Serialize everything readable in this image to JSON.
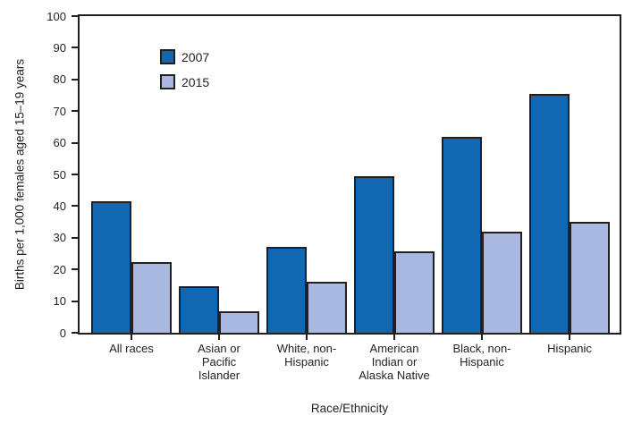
{
  "chart_data": {
    "type": "bar",
    "title": "",
    "categories": [
      "All races",
      "Asian or\nPacific\nIslander",
      "White, non-\nHispanic",
      "American\nIndian or\nAlaska Native",
      "Black, non-\nHispanic",
      "Hispanic"
    ],
    "series": [
      {
        "name": "2007",
        "color": "#1067b2",
        "values": [
          41.5,
          14.8,
          27.2,
          49.3,
          62.0,
          75.3
        ]
      },
      {
        "name": "2015",
        "color": "#a9b8df",
        "values": [
          22.3,
          6.9,
          16.0,
          25.7,
          31.8,
          34.9
        ]
      }
    ],
    "xlabel": "Race/Ethnicity",
    "ylabel": "Births per 1,000 females aged 15–19 years",
    "ylim": [
      0,
      100
    ],
    "yticks": [
      0,
      10,
      20,
      30,
      40,
      50,
      60,
      70,
      80,
      90,
      100
    ],
    "grid": false,
    "legend_position": "top-left-inside",
    "bar_border_color": "#231f20",
    "axis_color": "#231f20",
    "text_color": "#231f20",
    "background_color": "#ffffff"
  }
}
